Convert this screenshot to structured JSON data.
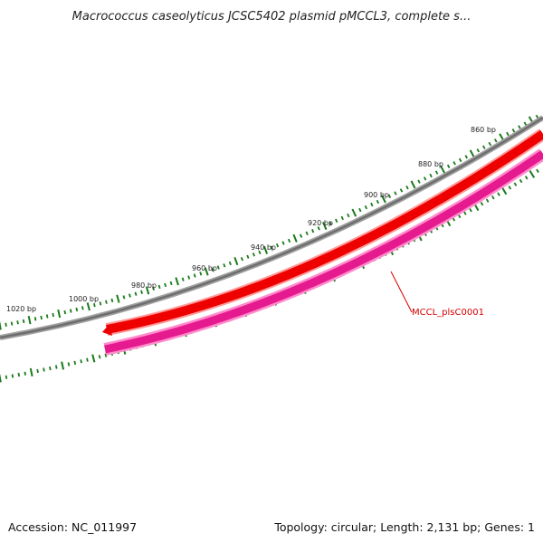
{
  "title": "Macrococcus caseolyticus JCSC5402 plasmid pMCCL3, complete s...",
  "footer": {
    "accession": "Accession: NC_011997",
    "summary": "Topology: circular; Length: 2,131 bp; Genes: 1"
  },
  "tick_labels": [
    "860 bp",
    "880 bp",
    "900 bp",
    "920 bp",
    "940 bp",
    "960 bp",
    "980 bp",
    "1000 bp",
    "1020 bp"
  ],
  "gene_label": "MCCL_plsC0001",
  "colors": {
    "backbone": "#7a7a7a",
    "gene_forward": "#ee0000",
    "gene_reverse": "#ee1493",
    "ticks": "#1a7a1a",
    "label_line": "#d40000"
  }
}
